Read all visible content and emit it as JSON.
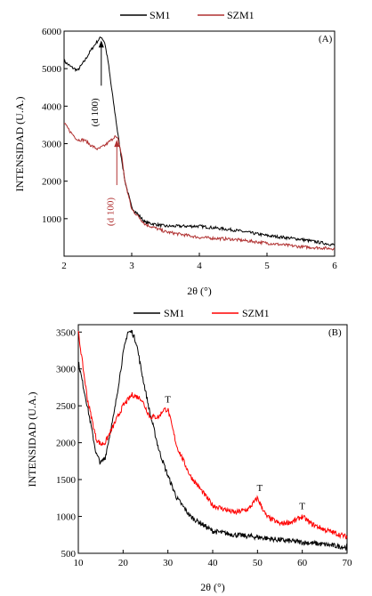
{
  "chart_data": [
    {
      "type": "line",
      "panel_label": "(A)",
      "xlabel": "2θ (°)",
      "ylabel": "INTENSIDAD (U.A.)",
      "xlim": [
        2,
        6
      ],
      "ylim": [
        0,
        6000
      ],
      "xticks": [
        2,
        3,
        4,
        5,
        6
      ],
      "yticks": [
        1000,
        2000,
        3000,
        4000,
        5000,
        6000
      ],
      "legend_position": "top",
      "series": [
        {
          "name": "SM1",
          "color": "#000000",
          "x": [
            2.0,
            2.1,
            2.2,
            2.3,
            2.4,
            2.5,
            2.55,
            2.6,
            2.65,
            2.7,
            2.8,
            2.9,
            3.0,
            3.2,
            3.5,
            4.0,
            4.5,
            5.0,
            5.5,
            6.0
          ],
          "y": [
            5200,
            5050,
            4950,
            5200,
            5500,
            5750,
            5850,
            5700,
            5200,
            4500,
            3200,
            2000,
            1300,
            900,
            800,
            800,
            700,
            550,
            450,
            300
          ]
        },
        {
          "name": "SZM1",
          "color": "#b03030",
          "x": [
            2.0,
            2.1,
            2.2,
            2.3,
            2.4,
            2.5,
            2.6,
            2.7,
            2.75,
            2.8,
            2.85,
            2.9,
            3.0,
            3.2,
            3.5,
            4.0,
            4.5,
            5.0,
            5.5,
            6.0
          ],
          "y": [
            3550,
            3300,
            3100,
            3100,
            2950,
            2850,
            2950,
            3100,
            3200,
            3100,
            2700,
            2000,
            1250,
            850,
            650,
            500,
            450,
            350,
            250,
            200
          ]
        }
      ],
      "annotations": [
        {
          "text": "(d 100)",
          "x": 2.55,
          "y": 5850,
          "color": "#000000"
        },
        {
          "text": "(d 100)",
          "x": 2.78,
          "y": 3200,
          "color": "#b03030"
        }
      ]
    },
    {
      "type": "line",
      "panel_label": "(B)",
      "xlabel": "2θ (°)",
      "ylabel": "INTENSIDAD (U.A.)",
      "xlim": [
        10,
        70
      ],
      "ylim": [
        500,
        3600
      ],
      "xticks": [
        10,
        20,
        30,
        40,
        50,
        60,
        70
      ],
      "yticks": [
        500,
        1000,
        1500,
        2000,
        2500,
        3000,
        3500
      ],
      "legend_position": "top",
      "series": [
        {
          "name": "SM1",
          "color": "#000000",
          "x": [
            10,
            12,
            14,
            15,
            16,
            18,
            20,
            21,
            22,
            23,
            24,
            26,
            28,
            30,
            32,
            35,
            40,
            45,
            50,
            55,
            60,
            65,
            70
          ],
          "y": [
            3100,
            2500,
            1850,
            1720,
            1800,
            2400,
            3200,
            3500,
            3500,
            3350,
            3000,
            2400,
            1900,
            1550,
            1250,
            1000,
            800,
            750,
            720,
            680,
            650,
            620,
            580
          ]
        },
        {
          "name": "SZM1",
          "color": "#ff0000",
          "x": [
            10,
            12,
            14,
            15,
            16,
            18,
            20,
            22,
            24,
            26,
            28,
            29,
            30,
            31,
            32,
            35,
            40,
            45,
            48,
            50,
            52,
            55,
            58,
            60,
            62,
            65,
            70
          ],
          "y": [
            3500,
            2600,
            2050,
            1980,
            2000,
            2250,
            2500,
            2650,
            2600,
            2350,
            2350,
            2450,
            2450,
            2200,
            1950,
            1550,
            1150,
            1050,
            1100,
            1250,
            1000,
            900,
            930,
            1000,
            900,
            820,
            720
          ]
        }
      ],
      "annotations": [
        {
          "text": "T",
          "x": 30,
          "y": 2450
        },
        {
          "text": "T",
          "x": 50.5,
          "y": 1250
        },
        {
          "text": "T",
          "x": 60,
          "y": 1000
        }
      ]
    }
  ]
}
